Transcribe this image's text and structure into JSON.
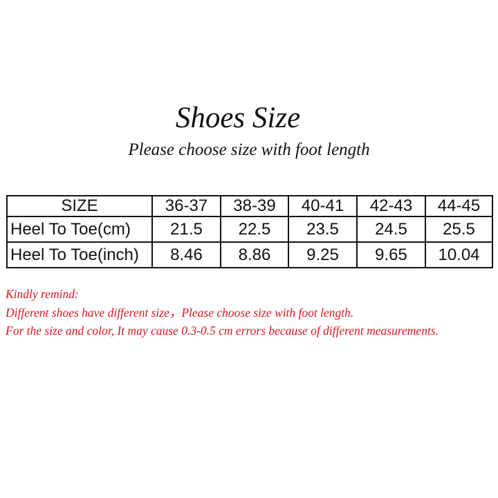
{
  "title": "Shoes Size",
  "subtitle": "Please choose size with foot length",
  "table": {
    "headers": [
      "SIZE",
      "36-37",
      "38-39",
      "40-41",
      "42-43",
      "44-45"
    ],
    "rows": [
      [
        "Heel To Toe(cm)",
        "21.5",
        "22.5",
        "23.5",
        "24.5",
        "25.5"
      ],
      [
        "Heel To Toe(inch)",
        "8.46",
        "8.86",
        "9.25",
        "9.65",
        "10.04"
      ]
    ]
  },
  "notes": [
    "Kindly remind:",
    "Different shoes have different size，Please choose size with foot length.",
    "For the size and color, It may cause 0.3-0.5 cm errors because of different measurements."
  ],
  "colors": {
    "note_text": "#e0141e",
    "text": "#111111"
  }
}
